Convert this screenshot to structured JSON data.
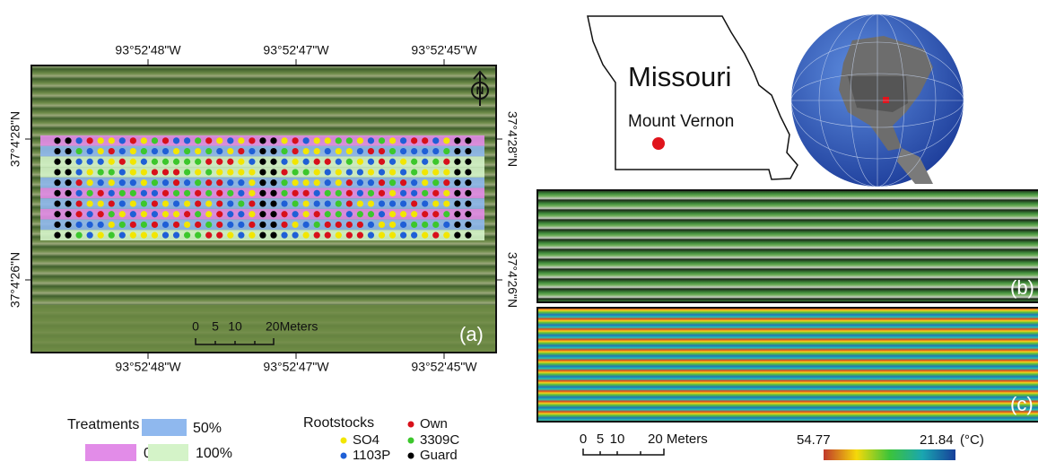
{
  "panel_a": {
    "label": "(a)",
    "north": "N",
    "top_lon_labels": [
      "93°52'48\"W",
      "93°52'47\"W",
      "93°52'45\"W"
    ],
    "bottom_lon_labels": [
      "93°52'48\"W",
      "93°52'47\"W",
      "93°52'45\"W"
    ],
    "left_lat_labels": [
      "37°4'28\"N",
      "37°4'26\"N"
    ],
    "right_lat_labels": [
      "37°4'28\"N",
      "37°4'26\"N"
    ],
    "scale": {
      "ticks": [
        "0",
        "5",
        "10",
        "20Meters"
      ]
    }
  },
  "legend_treatments": {
    "title": "Treatments",
    "items": [
      {
        "label": "0%",
        "color": "#e28ce8"
      },
      {
        "label": "50%",
        "color": "#8fb8ee"
      },
      {
        "label": "100%",
        "color": "#d4f3c8"
      }
    ]
  },
  "legend_rootstocks": {
    "title": "Rootstocks",
    "items": [
      {
        "label": "SO4",
        "color": "#f2e600"
      },
      {
        "label": "1103P",
        "color": "#1f5fd6"
      },
      {
        "label": "Own",
        "color": "#d8101a"
      },
      {
        "label": "3309C",
        "color": "#3cc72c"
      },
      {
        "label": "Guard",
        "color": "#000000"
      }
    ]
  },
  "inset": {
    "state": "Missouri",
    "site": "Mount Vernon"
  },
  "panel_b": {
    "label": "(b)"
  },
  "panel_c": {
    "label": "(c)",
    "scale": {
      "ticks": [
        "0",
        "5",
        "10",
        "20 Meters"
      ]
    },
    "colorbar": {
      "max_label": "54.77",
      "min_label": "21.84",
      "unit": "(°C)"
    }
  }
}
